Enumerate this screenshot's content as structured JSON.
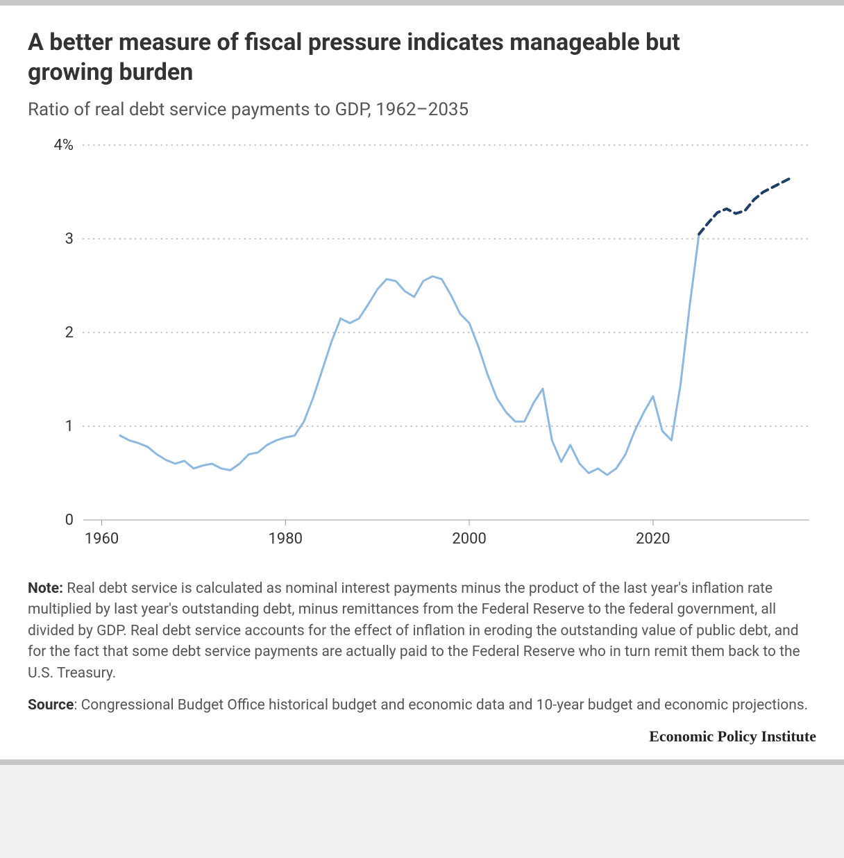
{
  "title": "A better measure of fiscal pressure indicates manageable but growing burden",
  "subtitle": "Ratio of real debt service payments to GDP, 1962–2035",
  "note_label": "Note:",
  "note_text": " Real debt service is calculated as nominal interest payments minus the product of the last year's inflation rate multiplied by last year's outstanding debt, minus remittances from the Federal Reserve to the federal government, all divided by GDP. Real debt service accounts for the effect of inflation in eroding the outstanding value of public debt, and for the fact that some debt service payments are actually paid to the Federal Reserve who in turn remit them back to the U.S. Treasury.",
  "source_label": "Source",
  "source_text": ": Congressional Budget Office historical budget and economic data and 10-year budget and economic projections.",
  "attribution": "Economic Policy Institute",
  "chart": {
    "type": "line",
    "x_domain": [
      1958,
      2037
    ],
    "y_domain": [
      0,
      4
    ],
    "x_ticks": [
      1960,
      1980,
      2000,
      2020
    ],
    "y_ticks": [
      {
        "v": 0,
        "label": "0"
      },
      {
        "v": 1,
        "label": "1"
      },
      {
        "v": 2,
        "label": "2"
      },
      {
        "v": 3,
        "label": "3"
      },
      {
        "v": 4,
        "label": "4%"
      }
    ],
    "plot_bg": "#ffffff",
    "grid_color": "#c7c7c7",
    "axis_color": "#999999",
    "tick_label_color": "#333333",
    "tick_fontsize": 22,
    "series_historical": {
      "color": "#8db8e0",
      "width": 3,
      "dash": null,
      "points": [
        [
          1962,
          0.9
        ],
        [
          1963,
          0.85
        ],
        [
          1964,
          0.82
        ],
        [
          1965,
          0.78
        ],
        [
          1966,
          0.7
        ],
        [
          1967,
          0.64
        ],
        [
          1968,
          0.6
        ],
        [
          1969,
          0.63
        ],
        [
          1970,
          0.55
        ],
        [
          1971,
          0.58
        ],
        [
          1972,
          0.6
        ],
        [
          1973,
          0.55
        ],
        [
          1974,
          0.53
        ],
        [
          1975,
          0.6
        ],
        [
          1976,
          0.7
        ],
        [
          1977,
          0.72
        ],
        [
          1978,
          0.8
        ],
        [
          1979,
          0.85
        ],
        [
          1980,
          0.88
        ],
        [
          1981,
          0.9
        ],
        [
          1982,
          1.05
        ],
        [
          1983,
          1.3
        ],
        [
          1984,
          1.6
        ],
        [
          1985,
          1.9
        ],
        [
          1986,
          2.15
        ],
        [
          1987,
          2.1
        ],
        [
          1988,
          2.15
        ],
        [
          1989,
          2.3
        ],
        [
          1990,
          2.46
        ],
        [
          1991,
          2.57
        ],
        [
          1992,
          2.55
        ],
        [
          1993,
          2.44
        ],
        [
          1994,
          2.38
        ],
        [
          1995,
          2.55
        ],
        [
          1996,
          2.6
        ],
        [
          1997,
          2.57
        ],
        [
          1998,
          2.4
        ],
        [
          1999,
          2.2
        ],
        [
          2000,
          2.1
        ],
        [
          2001,
          1.85
        ],
        [
          2002,
          1.55
        ],
        [
          2003,
          1.3
        ],
        [
          2004,
          1.15
        ],
        [
          2005,
          1.05
        ],
        [
          2006,
          1.05
        ],
        [
          2007,
          1.25
        ],
        [
          2008,
          1.4
        ],
        [
          2009,
          0.85
        ],
        [
          2010,
          0.62
        ],
        [
          2011,
          0.8
        ],
        [
          2012,
          0.6
        ],
        [
          2013,
          0.5
        ],
        [
          2014,
          0.55
        ],
        [
          2015,
          0.48
        ],
        [
          2016,
          0.55
        ],
        [
          2017,
          0.7
        ],
        [
          2018,
          0.95
        ],
        [
          2019,
          1.15
        ],
        [
          2020,
          1.32
        ],
        [
          2021,
          0.95
        ],
        [
          2022,
          0.85
        ],
        [
          2023,
          1.45
        ],
        [
          2024,
          2.3
        ],
        [
          2025,
          3.05
        ]
      ]
    },
    "series_projection": {
      "color": "#1f3f66",
      "width": 4,
      "dash": "10,7",
      "points": [
        [
          2025,
          3.05
        ],
        [
          2026,
          3.17
        ],
        [
          2027,
          3.28
        ],
        [
          2028,
          3.32
        ],
        [
          2029,
          3.27
        ],
        [
          2030,
          3.3
        ],
        [
          2031,
          3.42
        ],
        [
          2032,
          3.5
        ],
        [
          2033,
          3.55
        ],
        [
          2034,
          3.6
        ],
        [
          2035,
          3.65
        ]
      ]
    }
  }
}
